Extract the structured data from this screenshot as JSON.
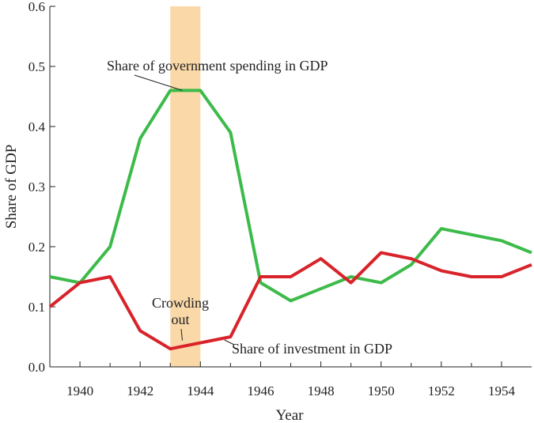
{
  "chart_data": {
    "type": "line",
    "title": "",
    "xlabel": "Year",
    "ylabel": "Share of GDP",
    "xlim": [
      1939,
      1955
    ],
    "ylim": [
      0.0,
      0.6
    ],
    "x_ticks": [
      1940,
      1942,
      1944,
      1946,
      1948,
      1950,
      1952,
      1954
    ],
    "x_tick_labels": [
      "1940",
      "1942",
      "1944",
      "1946",
      "1948",
      "1950",
      "1952",
      "1954"
    ],
    "y_ticks": [
      0.0,
      0.1,
      0.2,
      0.3,
      0.4,
      0.5,
      0.6
    ],
    "y_tick_labels": [
      "0.0",
      "0.1",
      "0.2",
      "0.3",
      "0.4",
      "0.5",
      "0.6"
    ],
    "grid": false,
    "shaded_region": {
      "x": [
        1943,
        1944
      ],
      "color": "#fad8a8"
    },
    "series": [
      {
        "name": "Share of government spending in GDP",
        "color": "#3dbb4a",
        "x": [
          1939,
          1940,
          1941,
          1942,
          1943,
          1944,
          1945,
          1946,
          1947,
          1948,
          1949,
          1950,
          1951,
          1952,
          1953,
          1954,
          1955
        ],
        "values": [
          0.15,
          0.14,
          0.2,
          0.38,
          0.46,
          0.46,
          0.39,
          0.14,
          0.11,
          0.13,
          0.15,
          0.14,
          0.17,
          0.23,
          0.22,
          0.21,
          0.19
        ]
      },
      {
        "name": "Share of investment in GDP",
        "color": "#d8232a",
        "x": [
          1939,
          1940,
          1941,
          1942,
          1943,
          1944,
          1945,
          1946,
          1947,
          1948,
          1949,
          1950,
          1951,
          1952,
          1953,
          1954,
          1955
        ],
        "values": [
          0.1,
          0.14,
          0.15,
          0.06,
          0.03,
          0.04,
          0.05,
          0.15,
          0.15,
          0.18,
          0.14,
          0.19,
          0.18,
          0.16,
          0.15,
          0.15,
          0.17
        ]
      }
    ],
    "annotations": [
      {
        "text": "Share of government spending in GDP",
        "target_series": 0,
        "target": [
          1943.4,
          0.46
        ]
      },
      {
        "text": "Share of investment in GDP",
        "target_series": 1,
        "target": [
          1944.8,
          0.05
        ]
      },
      {
        "text_lines": [
          "Crowding",
          "out"
        ],
        "target": [
          1943.4,
          0.04
        ]
      }
    ]
  }
}
